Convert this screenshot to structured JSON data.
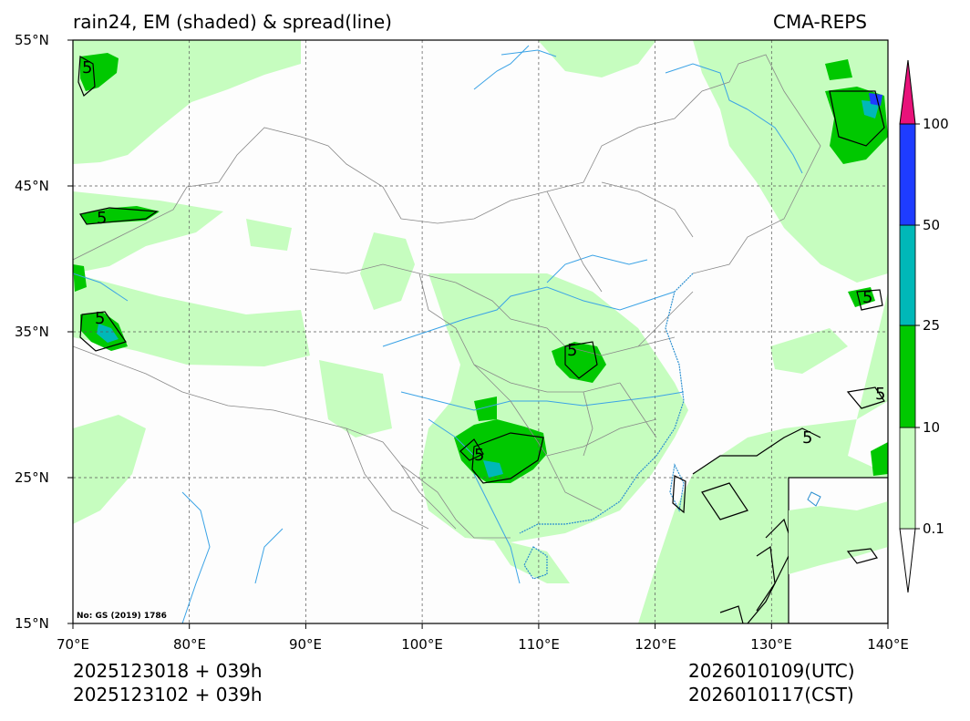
{
  "title": {
    "left": "rain24, EM (shaded) & spread(line)",
    "right": "CMA-REPS"
  },
  "map": {
    "lat_labels": [
      "55°N",
      "45°N",
      "35°N",
      "25°N",
      "15°N"
    ],
    "lon_labels": [
      "70°E",
      "80°E",
      "90°E",
      "100°E",
      "110°E",
      "120°E",
      "130°E",
      "140°E"
    ],
    "note": "No: GS (2019) 1786",
    "colors": {
      "light_green": "#c6fdbf",
      "green": "#00c800",
      "teal": "#00b8b8",
      "blue": "#1e3cff",
      "magenta": "#e8127a",
      "river": "#3ba3e6",
      "border": "#888888"
    }
  },
  "colorbar": {
    "labels": [
      "100",
      "50",
      "25",
      "10",
      "0.1"
    ]
  },
  "contour_labels": [
    "5",
    "5",
    "5",
    "5",
    "5",
    "5",
    "5",
    "5"
  ],
  "time": {
    "init_utc": "2025123018  +  039h",
    "init_cst": "2025123102  +  039h",
    "valid_utc": "2026010109(UTC)",
    "valid_cst": "2026010117(CST)"
  }
}
